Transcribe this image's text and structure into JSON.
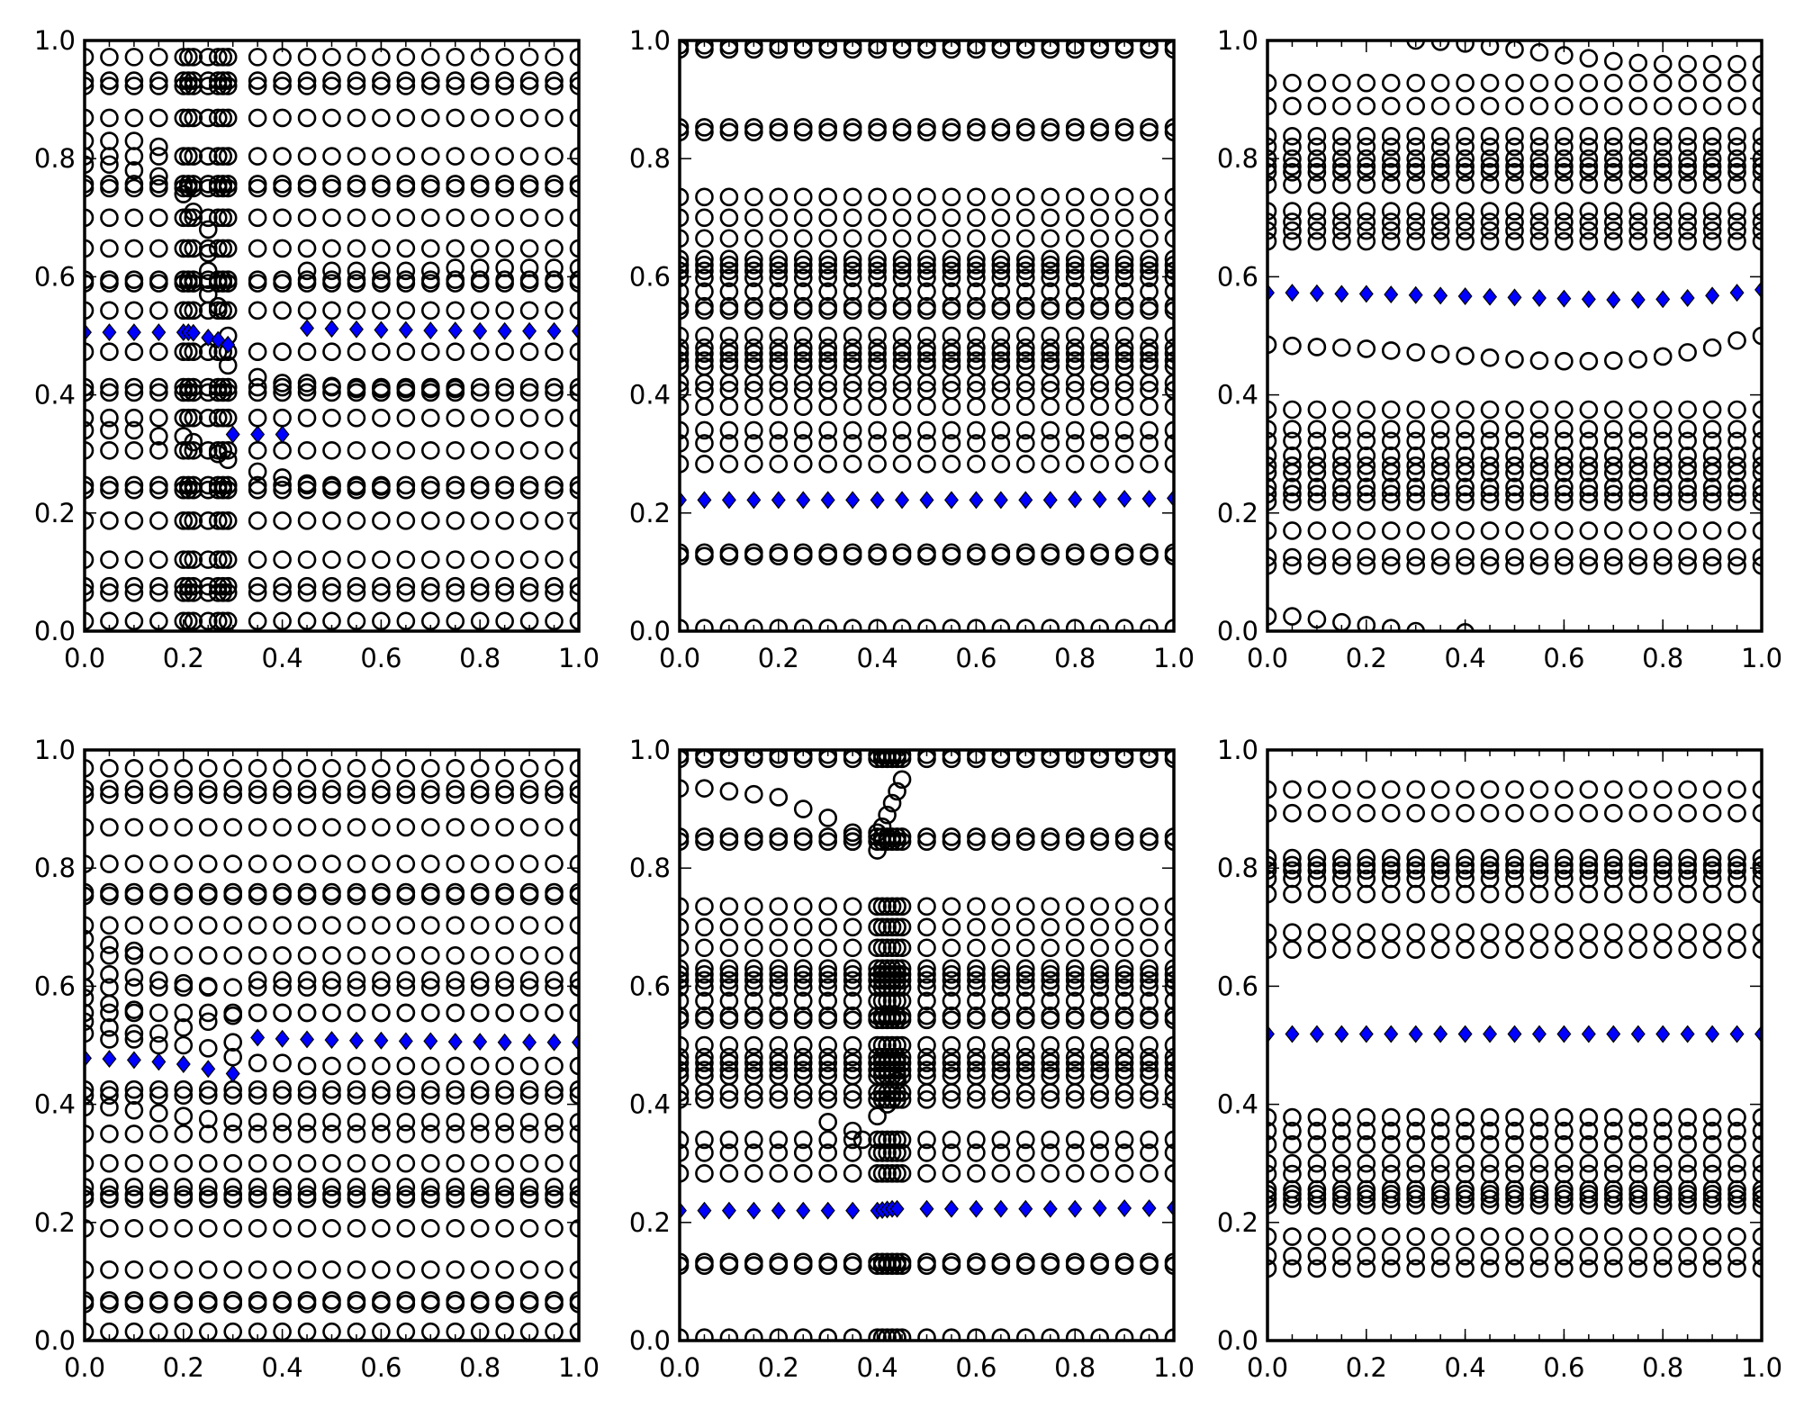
{
  "chart_data": [
    {
      "type": "scatter",
      "title": "",
      "xlabel": "",
      "ylabel": "",
      "xlim": [
        0,
        1
      ],
      "ylim": [
        0,
        1
      ],
      "grid": false,
      "xticks": [
        "0.0",
        "0.2",
        "0.4",
        "0.6",
        "0.8",
        "1.0"
      ],
      "yticks": [
        "0.0",
        "0.2",
        "0.4",
        "0.6",
        "0.8",
        "1.0"
      ],
      "x": [
        0,
        0.05,
        0.1,
        0.15,
        0.2,
        0.21,
        0.22,
        0.25,
        0.27,
        0.28,
        0.29,
        0.35,
        0.4,
        0.45,
        0.5,
        0.55,
        0.6,
        0.65,
        0.7,
        0.75,
        0.8,
        0.85,
        0.9,
        0.95,
        1.0
      ],
      "circle_rows": [
        0.972,
        0.932,
        0.923,
        0.869,
        0.804,
        0.757,
        0.75,
        0.7,
        0.648,
        0.595,
        0.589,
        0.543,
        0.473,
        0.413,
        0.404,
        0.361,
        0.306,
        0.247,
        0.239,
        0.187,
        0.121,
        0.076,
        0.065,
        0.017
      ],
      "circle_curves": [],
      "extra_circles": [
        [
          0,
          0.83
        ],
        [
          0.05,
          0.83
        ],
        [
          0.1,
          0.83
        ],
        [
          0.15,
          0.82
        ],
        [
          0,
          0.79
        ],
        [
          0.05,
          0.79
        ],
        [
          0.1,
          0.78
        ],
        [
          0.15,
          0.77
        ],
        [
          0,
          0.34
        ],
        [
          0.05,
          0.34
        ],
        [
          0.1,
          0.34
        ],
        [
          0.15,
          0.33
        ],
        [
          0.2,
          0.33
        ],
        [
          0.22,
          0.32
        ],
        [
          0.2,
          0.74
        ],
        [
          0.22,
          0.71
        ],
        [
          0.25,
          0.68
        ],
        [
          0.25,
          0.64
        ],
        [
          0.25,
          0.61
        ],
        [
          0.25,
          0.57
        ],
        [
          0.27,
          0.55
        ],
        [
          0.29,
          0.5
        ],
        [
          0.29,
          0.45
        ],
        [
          0.27,
          0.3
        ],
        [
          0.29,
          0.29
        ],
        [
          0.35,
          0.43
        ],
        [
          0.35,
          0.27
        ],
        [
          0.4,
          0.42
        ],
        [
          0.4,
          0.26
        ],
        [
          0.45,
          0.42
        ],
        [
          0.5,
          0.415
        ],
        [
          0.55,
          0.41
        ],
        [
          0.6,
          0.41
        ],
        [
          0.65,
          0.41
        ],
        [
          0.7,
          0.41
        ],
        [
          0.75,
          0.41
        ],
        [
          0.45,
          0.25
        ],
        [
          0.5,
          0.245
        ],
        [
          0.55,
          0.245
        ],
        [
          0.6,
          0.245
        ],
        [
          0.45,
          0.61
        ],
        [
          0.5,
          0.61
        ],
        [
          0.55,
          0.61
        ],
        [
          0.6,
          0.61
        ],
        [
          0.65,
          0.61
        ],
        [
          0.7,
          0.61
        ],
        [
          0.75,
          0.615
        ],
        [
          0.8,
          0.615
        ],
        [
          0.85,
          0.615
        ],
        [
          0.9,
          0.615
        ],
        [
          0.95,
          0.615
        ],
        [
          1.0,
          0.615
        ]
      ],
      "diamonds": {
        "x": [
          0,
          0.05,
          0.1,
          0.15,
          0.2,
          0.21,
          0.22,
          0.25,
          0.27,
          0.29,
          0.3,
          0.35,
          0.4,
          0.45,
          0.5,
          0.55,
          0.6,
          0.65,
          0.7,
          0.75,
          0.8,
          0.85,
          0.9,
          0.95,
          1.0
        ],
        "y": [
          0.506,
          0.506,
          0.506,
          0.506,
          0.506,
          0.506,
          0.505,
          0.497,
          0.493,
          0.485,
          0.333,
          0.333,
          0.333,
          0.513,
          0.512,
          0.511,
          0.51,
          0.51,
          0.509,
          0.509,
          0.508,
          0.508,
          0.508,
          0.508,
          0.508
        ]
      }
    },
    {
      "type": "scatter",
      "title": "",
      "xlabel": "",
      "ylabel": "",
      "xlim": [
        0,
        1
      ],
      "ylim": [
        0,
        1
      ],
      "grid": false,
      "xticks": [
        "0.0",
        "0.2",
        "0.4",
        "0.6",
        "0.8",
        "1.0"
      ],
      "yticks": [
        "0.0",
        "0.2",
        "0.4",
        "0.6",
        "0.8",
        "1.0"
      ],
      "x": [
        0,
        0.05,
        0.1,
        0.15,
        0.2,
        0.25,
        0.3,
        0.35,
        0.4,
        0.45,
        0.5,
        0.55,
        0.6,
        0.65,
        0.7,
        0.75,
        0.8,
        0.85,
        0.9,
        0.95,
        1.0
      ],
      "circle_rows": [
        0.992,
        0.985,
        0.853,
        0.845,
        0.735,
        0.7,
        0.665,
        0.63,
        0.62,
        0.61,
        0.598,
        0.575,
        0.55,
        0.543,
        0.5,
        0.48,
        0.47,
        0.458,
        0.448,
        0.42,
        0.408,
        0.38,
        0.34,
        0.318,
        0.283,
        0.133,
        0.127,
        0.005
      ],
      "circle_curves": [],
      "extra_circles": [],
      "diamonds": {
        "x": [
          0,
          0.05,
          0.1,
          0.15,
          0.2,
          0.25,
          0.3,
          0.35,
          0.4,
          0.45,
          0.5,
          0.55,
          0.6,
          0.65,
          0.7,
          0.75,
          0.8,
          0.85,
          0.9,
          0.95,
          1.0
        ],
        "y": [
          0.222,
          0.222,
          0.222,
          0.222,
          0.222,
          0.222,
          0.222,
          0.222,
          0.222,
          0.222,
          0.222,
          0.222,
          0.222,
          0.222,
          0.222,
          0.222,
          0.223,
          0.223,
          0.224,
          0.224,
          0.225
        ]
      }
    },
    {
      "type": "scatter",
      "title": "",
      "xlabel": "",
      "ylabel": "",
      "xlim": [
        0,
        1
      ],
      "ylim": [
        0,
        1
      ],
      "grid": false,
      "xticks": [
        "0.0",
        "0.2",
        "0.4",
        "0.6",
        "0.8",
        "1.0"
      ],
      "yticks": [
        "0.0",
        "0.2",
        "0.4",
        "0.6",
        "0.8",
        "1.0"
      ],
      "x": [
        0,
        0.05,
        0.1,
        0.15,
        0.2,
        0.25,
        0.3,
        0.35,
        0.4,
        0.45,
        0.5,
        0.55,
        0.6,
        0.65,
        0.7,
        0.75,
        0.8,
        0.85,
        0.9,
        0.95,
        1.0
      ],
      "circle_rows": [
        0.928,
        0.889,
        0.838,
        0.82,
        0.8,
        0.787,
        0.777,
        0.756,
        0.711,
        0.693,
        0.678,
        0.66,
        0.375,
        0.342,
        0.322,
        0.297,
        0.28,
        0.268,
        0.244,
        0.232,
        0.219,
        0.17,
        0.125,
        0.111
      ],
      "circle_curves": [
        [
          0.485,
          0.483,
          0.481,
          0.48,
          0.478,
          0.475,
          0.472,
          0.469,
          0.466,
          0.463,
          0.46,
          0.458,
          0.457,
          0.457,
          0.458,
          0.46,
          0.465,
          0.472,
          0.48,
          0.492,
          0.5
        ]
      ],
      "extra_circles": [
        [
          0,
          0.025
        ],
        [
          0.05,
          0.025
        ],
        [
          0.1,
          0.02
        ],
        [
          0.15,
          0.015
        ],
        [
          0.2,
          0.01
        ],
        [
          0.25,
          0.005
        ],
        [
          0.3,
          0.0
        ],
        [
          0.4,
          -0.002
        ],
        [
          0.3,
          1.0
        ],
        [
          0.35,
          0.998
        ],
        [
          0.4,
          0.995
        ],
        [
          0.45,
          0.99
        ],
        [
          0.5,
          0.985
        ],
        [
          0.55,
          0.98
        ],
        [
          0.6,
          0.975
        ],
        [
          0.65,
          0.97
        ],
        [
          0.7,
          0.965
        ],
        [
          0.75,
          0.962
        ],
        [
          0.8,
          0.96
        ],
        [
          0.85,
          0.96
        ],
        [
          0.9,
          0.96
        ],
        [
          0.95,
          0.96
        ],
        [
          1.0,
          0.96
        ]
      ],
      "diamonds": {
        "x": [
          0,
          0.05,
          0.1,
          0.15,
          0.2,
          0.25,
          0.3,
          0.35,
          0.4,
          0.45,
          0.5,
          0.55,
          0.6,
          0.65,
          0.7,
          0.75,
          0.8,
          0.85,
          0.9,
          0.95,
          1.0
        ],
        "y": [
          0.573,
          0.573,
          0.572,
          0.571,
          0.571,
          0.57,
          0.569,
          0.568,
          0.567,
          0.566,
          0.565,
          0.564,
          0.563,
          0.562,
          0.561,
          0.561,
          0.562,
          0.564,
          0.568,
          0.573,
          0.578
        ]
      }
    },
    {
      "type": "scatter",
      "title": "",
      "xlabel": "",
      "ylabel": "",
      "xlim": [
        0,
        1
      ],
      "ylim": [
        0,
        1
      ],
      "grid": false,
      "xticks": [
        "0.0",
        "0.2",
        "0.4",
        "0.6",
        "0.8",
        "1.0"
      ],
      "yticks": [
        "0.0",
        "0.2",
        "0.4",
        "0.6",
        "0.8",
        "1.0"
      ],
      "x": [
        0,
        0.05,
        0.1,
        0.15,
        0.2,
        0.25,
        0.3,
        0.35,
        0.4,
        0.45,
        0.5,
        0.55,
        0.6,
        0.65,
        0.7,
        0.75,
        0.8,
        0.85,
        0.9,
        0.95,
        1.0
      ],
      "circle_rows": [
        0.969,
        0.934,
        0.924,
        0.869,
        0.807,
        0.759,
        0.753,
        0.703,
        0.652,
        0.598,
        0.555,
        0.425,
        0.415,
        0.35,
        0.3,
        0.26,
        0.247,
        0.24,
        0.19,
        0.12,
        0.068,
        0.062,
        0.015
      ],
      "circle_curves": [
        [
          0.395,
          0.395,
          0.39,
          0.385,
          0.38,
          0.375,
          0.37,
          0.37,
          0.37,
          0.37,
          0.37,
          0.37,
          0.37,
          0.37,
          0.37,
          0.37,
          0.37,
          0.37,
          0.37,
          0.37,
          0.37
        ],
        [
          0.625,
          0.62,
          0.615,
          0.61,
          0.605,
          0.6,
          0.505,
          0.61,
          0.61,
          0.61,
          0.61,
          0.61,
          0.61,
          0.61,
          0.61,
          0.61,
          0.61,
          0.61,
          0.61,
          0.61,
          0.61
        ],
        [
          0.54,
          0.53,
          0.52,
          0.52,
          0.53,
          0.54,
          0.55,
          0.555,
          0.555,
          0.555,
          0.555,
          0.555,
          0.555,
          0.555,
          0.555,
          0.555,
          0.555,
          0.555,
          0.555,
          0.555,
          0.555
        ],
        [
          0.52,
          0.51,
          0.51,
          0.5,
          0.5,
          0.495,
          0.48,
          0.47,
          0.47,
          0.465,
          0.465,
          0.465,
          0.465,
          0.465,
          0.465,
          0.465,
          0.465,
          0.465,
          0.465,
          0.465,
          0.465
        ]
      ],
      "extra_circles": [
        [
          0,
          0.68
        ],
        [
          0.05,
          0.67
        ],
        [
          0.1,
          0.66
        ],
        [
          0,
          0.58
        ],
        [
          0.05,
          0.57
        ],
        [
          0.1,
          0.56
        ]
      ],
      "diamonds": {
        "x": [
          0,
          0.05,
          0.1,
          0.15,
          0.2,
          0.25,
          0.3,
          0.35,
          0.4,
          0.45,
          0.5,
          0.55,
          0.6,
          0.65,
          0.7,
          0.75,
          0.8,
          0.85,
          0.9,
          0.95,
          1.0
        ],
        "y": [
          0.478,
          0.477,
          0.475,
          0.472,
          0.468,
          0.46,
          0.452,
          0.513,
          0.511,
          0.51,
          0.509,
          0.508,
          0.508,
          0.507,
          0.507,
          0.506,
          0.506,
          0.505,
          0.505,
          0.505,
          0.505
        ]
      }
    },
    {
      "type": "scatter",
      "title": "",
      "xlabel": "",
      "ylabel": "",
      "xlim": [
        0,
        1
      ],
      "ylim": [
        0,
        1
      ],
      "grid": false,
      "xticks": [
        "0.0",
        "0.2",
        "0.4",
        "0.6",
        "0.8",
        "1.0"
      ],
      "yticks": [
        "0.0",
        "0.2",
        "0.4",
        "0.6",
        "0.8",
        "1.0"
      ],
      "x": [
        0,
        0.05,
        0.1,
        0.15,
        0.2,
        0.25,
        0.3,
        0.35,
        0.4,
        0.41,
        0.42,
        0.43,
        0.44,
        0.45,
        0.5,
        0.55,
        0.6,
        0.65,
        0.7,
        0.75,
        0.8,
        0.85,
        0.9,
        0.95,
        1.0
      ],
      "circle_rows": [
        0.992,
        0.985,
        0.853,
        0.845,
        0.735,
        0.7,
        0.665,
        0.63,
        0.62,
        0.61,
        0.598,
        0.575,
        0.55,
        0.543,
        0.5,
        0.48,
        0.47,
        0.458,
        0.448,
        0.42,
        0.408,
        0.34,
        0.318,
        0.283,
        0.133,
        0.127,
        0.005
      ],
      "circle_curves": [],
      "extra_circles": [
        [
          0,
          0.935
        ],
        [
          0.05,
          0.935
        ],
        [
          0.1,
          0.93
        ],
        [
          0.15,
          0.925
        ],
        [
          0.2,
          0.92
        ],
        [
          0.25,
          0.9
        ],
        [
          0.3,
          0.885
        ],
        [
          0.35,
          0.86
        ],
        [
          0.35,
          0.845
        ],
        [
          0.4,
          0.83
        ],
        [
          0.4,
          0.86
        ],
        [
          0.41,
          0.87
        ],
        [
          0.42,
          0.89
        ],
        [
          0.43,
          0.91
        ],
        [
          0.44,
          0.93
        ],
        [
          0.45,
          0.95
        ],
        [
          0.3,
          0.37
        ],
        [
          0.35,
          0.355
        ],
        [
          0.37,
          0.34
        ],
        [
          0.4,
          0.38
        ],
        [
          0.42,
          0.4
        ],
        [
          0.43,
          0.42
        ],
        [
          0.44,
          0.44
        ]
      ],
      "diamonds": {
        "x": [
          0,
          0.05,
          0.1,
          0.15,
          0.2,
          0.25,
          0.3,
          0.35,
          0.4,
          0.41,
          0.42,
          0.43,
          0.44,
          0.5,
          0.55,
          0.6,
          0.65,
          0.7,
          0.75,
          0.8,
          0.85,
          0.9,
          0.95,
          1.0
        ],
        "y": [
          0.22,
          0.22,
          0.22,
          0.22,
          0.22,
          0.22,
          0.22,
          0.22,
          0.22,
          0.221,
          0.222,
          0.223,
          0.223,
          0.223,
          0.223,
          0.223,
          0.223,
          0.223,
          0.223,
          0.223,
          0.224,
          0.224,
          0.224,
          0.225
        ]
      }
    },
    {
      "type": "scatter",
      "title": "",
      "xlabel": "",
      "ylabel": "",
      "xlim": [
        0,
        1
      ],
      "ylim": [
        0,
        1
      ],
      "grid": false,
      "xticks": [
        "0.0",
        "0.2",
        "0.4",
        "0.6",
        "0.8",
        "1.0"
      ],
      "yticks": [
        "0.0",
        "0.2",
        "0.4",
        "0.6",
        "0.8",
        "1.0"
      ],
      "x": [
        0,
        0.05,
        0.1,
        0.15,
        0.2,
        0.25,
        0.3,
        0.35,
        0.4,
        0.45,
        0.5,
        0.55,
        0.6,
        0.65,
        0.7,
        0.75,
        0.8,
        0.85,
        0.9,
        0.95,
        1.0
      ],
      "circle_rows": [
        0.933,
        0.893,
        0.817,
        0.805,
        0.796,
        0.782,
        0.756,
        0.691,
        0.662,
        0.378,
        0.355,
        0.332,
        0.3,
        0.282,
        0.256,
        0.248,
        0.24,
        0.229,
        0.176,
        0.143,
        0.122
      ],
      "circle_curves": [],
      "extra_circles": [],
      "diamonds": {
        "x": [
          0,
          0.05,
          0.1,
          0.15,
          0.2,
          0.25,
          0.3,
          0.35,
          0.4,
          0.45,
          0.5,
          0.55,
          0.6,
          0.65,
          0.7,
          0.75,
          0.8,
          0.85,
          0.9,
          0.95,
          1.0
        ],
        "y": [
          0.519,
          0.519,
          0.519,
          0.519,
          0.519,
          0.519,
          0.519,
          0.519,
          0.519,
          0.519,
          0.519,
          0.519,
          0.519,
          0.519,
          0.519,
          0.519,
          0.519,
          0.519,
          0.519,
          0.519,
          0.519
        ]
      }
    }
  ],
  "colors": {
    "circle_edge": "#000000",
    "diamond_fill": "#0000ff",
    "diamond_edge": "#000000"
  }
}
